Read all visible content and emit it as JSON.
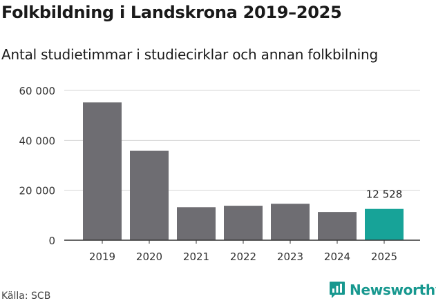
{
  "header": {
    "title": "Folkbildning i Landskrona 2019–2025",
    "subtitle": "Antal studietimmar i studiecirklar och annan folkbilning"
  },
  "footer": {
    "source": "Källa: SCB",
    "brand": "Newsworthy"
  },
  "colors": {
    "bar": "#6e6d72",
    "highlight": "#17a398",
    "grid": "#d4d4d4",
    "axis": "#333333",
    "brand": "#17988f"
  },
  "chart_data": {
    "type": "bar",
    "title": "Folkbildning i Landskrona 2019–2025",
    "subtitle": "Antal studietimmar i studiecirklar och annan folkbilning",
    "xlabel": "",
    "ylabel": "",
    "categories": [
      "2019",
      "2020",
      "2021",
      "2022",
      "2023",
      "2024",
      "2025"
    ],
    "values": [
      55200,
      35800,
      13200,
      13800,
      14600,
      11300,
      12528
    ],
    "highlight_index": 6,
    "annotation": "12 528",
    "ylim": [
      0,
      60000
    ],
    "yticks": [
      0,
      20000,
      40000,
      60000
    ],
    "ytick_labels": [
      "0",
      "20 000",
      "40 000",
      "60 000"
    ],
    "grid": true
  }
}
